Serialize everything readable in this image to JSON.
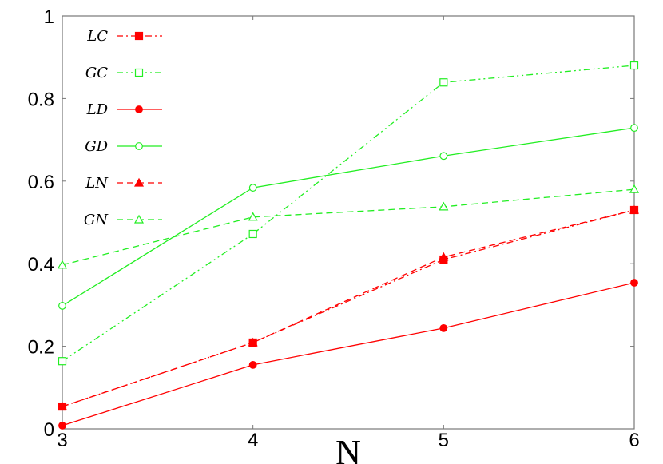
{
  "chart_data": {
    "type": "line",
    "title": "",
    "xlabel": "N",
    "ylabel": "",
    "xlim": [
      3,
      6
    ],
    "ylim": [
      0,
      1
    ],
    "x": [
      3,
      4,
      5,
      6
    ],
    "xticks": [
      "3",
      "4",
      "5",
      "6"
    ],
    "yticks": [
      "0",
      "0.2",
      "0.4",
      "0.6",
      "0.8",
      "1"
    ],
    "grid": false,
    "legend_position": "top-left",
    "series": [
      {
        "name": "LC",
        "color": "#ff0000",
        "marker": "filled-square",
        "line": "dash-dot",
        "values": [
          0.054,
          0.209,
          0.41,
          0.53
        ]
      },
      {
        "name": "GC",
        "color": "#22ee22",
        "marker": "open-square",
        "line": "dash-dot-dot",
        "values": [
          0.164,
          0.472,
          0.839,
          0.88
        ]
      },
      {
        "name": "LD",
        "color": "#ff0000",
        "marker": "filled-circle",
        "line": "solid",
        "values": [
          0.008,
          0.155,
          0.244,
          0.354
        ]
      },
      {
        "name": "GD",
        "color": "#22ee22",
        "marker": "open-circle",
        "line": "solid",
        "values": [
          0.298,
          0.584,
          0.661,
          0.729
        ]
      },
      {
        "name": "LN",
        "color": "#ff0000",
        "marker": "filled-triangle",
        "line": "dashed",
        "values": [
          0.054,
          0.209,
          0.416,
          0.53
        ]
      },
      {
        "name": "GN",
        "color": "#22ee22",
        "marker": "open-triangle",
        "line": "dashed",
        "values": [
          0.397,
          0.513,
          0.538,
          0.58
        ]
      }
    ]
  }
}
